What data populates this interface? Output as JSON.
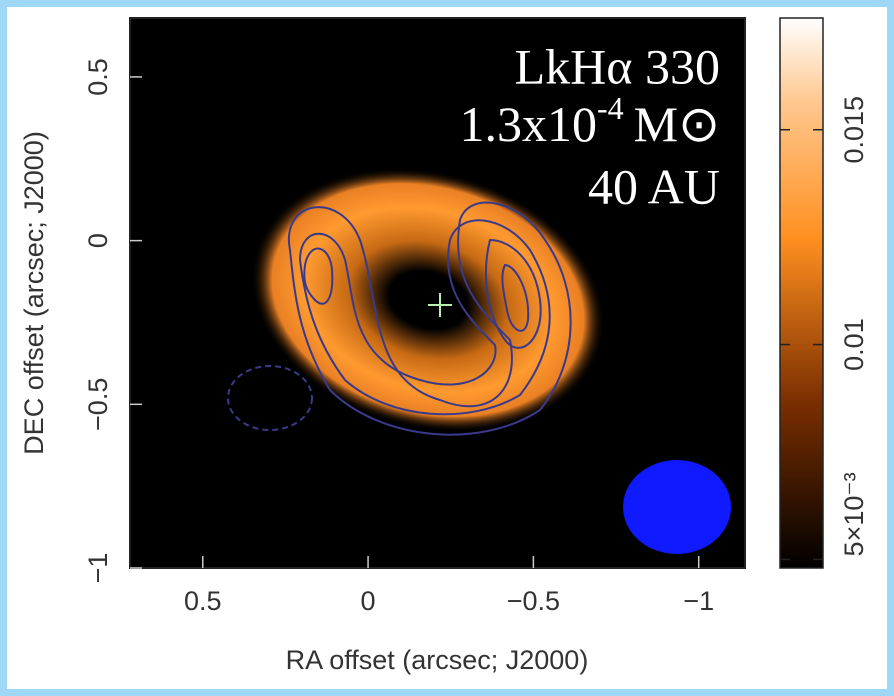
{
  "chart_data": {
    "type": "image",
    "annotation": {
      "name": "LkHα 330",
      "mass_base": "1.3x10",
      "mass_exp": "-4",
      "mass_unit": "M⊙",
      "radius": "40 AU"
    },
    "xlabel": "RA offset (arcsec; J2000)",
    "ylabel": "DEC offset (arcsec; J2000)",
    "xlim": [
      0.72,
      -1.14
    ],
    "xticks": [
      0.5,
      0,
      {
        "value": -0.5,
        "label": "−0.5"
      },
      {
        "value": -1,
        "label": "−1"
      }
    ],
    "ylim": [
      0.68,
      -1.0
    ],
    "yticks": [
      0.5,
      0,
      {
        "value": -0.5,
        "label": "−0.5"
      },
      {
        "value": -1,
        "label": "−1"
      }
    ],
    "clim": [
      0.0048,
      0.0176
    ],
    "cticks": [
      {
        "value": 0.005,
        "label": "5×10⁻³"
      },
      0.01,
      0.015
    ]
  }
}
